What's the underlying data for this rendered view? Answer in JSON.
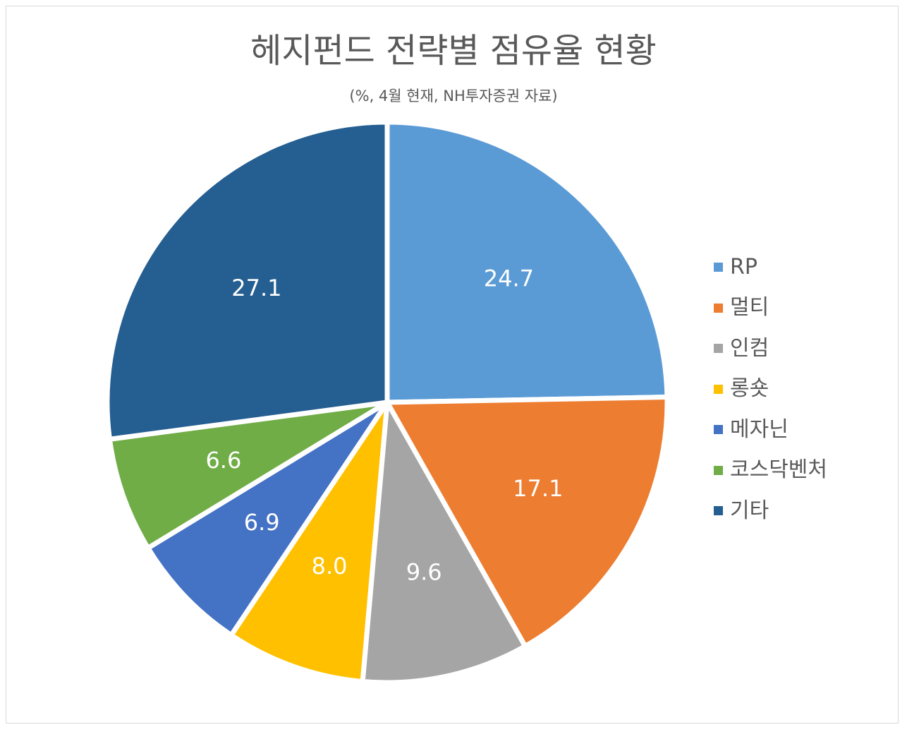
{
  "chart_data": {
    "type": "pie",
    "title": "헤지펀드 전략별 점유율 현황",
    "subtitle": "(%, 4월 현재, NH투자증권 자료)",
    "categories": [
      "RP",
      "멀티",
      "인컴",
      "롱숏",
      "메자닌",
      "코스닥벤처",
      "기타"
    ],
    "values": [
      24.7,
      17.1,
      9.6,
      8.0,
      6.9,
      6.6,
      27.1
    ],
    "labels": [
      "24.7",
      "17.1",
      "9.6",
      "8.0",
      "6.9",
      "6.6",
      "27.1"
    ],
    "colors": [
      "#5B9BD5",
      "#ED7D31",
      "#A5A5A5",
      "#FFC000",
      "#4472C4",
      "#70AD47",
      "#255E91"
    ],
    "legend_position": "right",
    "start_angle": "12 o'clock",
    "direction": "clockwise"
  }
}
